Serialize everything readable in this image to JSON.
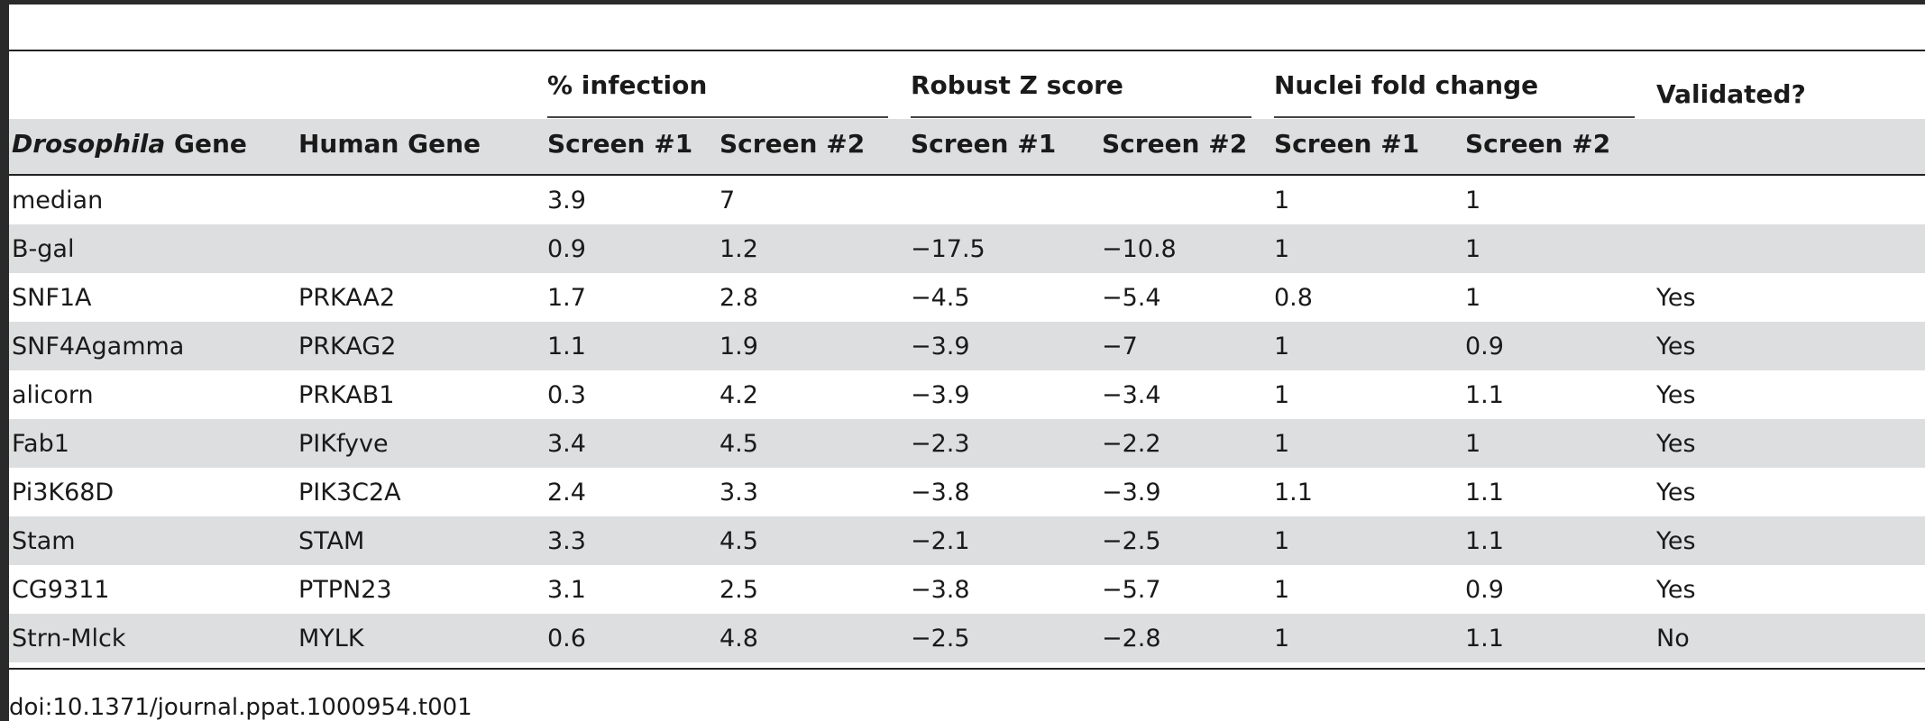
{
  "table": {
    "group_headers": {
      "infection": "% infection",
      "robust_z": "Robust Z score",
      "nuclei": "Nuclei fold change",
      "validated": "Validated?"
    },
    "col_headers": {
      "drosophila_italic": "Drosophila",
      "drosophila_rest": " Gene",
      "human": "Human Gene",
      "inf_s1": "Screen #1",
      "inf_s2": "Screen #2",
      "z_s1": "Screen #1",
      "z_s2": "Screen #2",
      "n_s1": "Screen #1",
      "n_s2": "Screen #2"
    },
    "rows": [
      [
        "median",
        "",
        "3.9",
        "7",
        "",
        "",
        "1",
        "1",
        ""
      ],
      [
        "B-gal",
        "",
        "0.9",
        "1.2",
        "−17.5",
        "−10.8",
        "1",
        "1",
        ""
      ],
      [
        "SNF1A",
        "PRKAA2",
        "1.7",
        "2.8",
        "−4.5",
        "−5.4",
        "0.8",
        "1",
        "Yes"
      ],
      [
        "SNF4Agamma",
        "PRKAG2",
        "1.1",
        "1.9",
        "−3.9",
        "−7",
        "1",
        "0.9",
        "Yes"
      ],
      [
        "alicorn",
        "PRKAB1",
        "0.3",
        "4.2",
        "−3.9",
        "−3.4",
        "1",
        "1.1",
        "Yes"
      ],
      [
        "Fab1",
        "PIKfyve",
        "3.4",
        "4.5",
        "−2.3",
        "−2.2",
        "1",
        "1",
        "Yes"
      ],
      [
        "Pi3K68D",
        "PIK3C2A",
        "2.4",
        "3.3",
        "−3.8",
        "−3.9",
        "1.1",
        "1.1",
        "Yes"
      ],
      [
        "Stam",
        "STAM",
        "3.3",
        "4.5",
        "−2.1",
        "−2.5",
        "1",
        "1.1",
        "Yes"
      ],
      [
        "CG9311",
        "PTPN23",
        "3.1",
        "2.5",
        "−3.8",
        "−5.7",
        "1",
        "0.9",
        "Yes"
      ],
      [
        "Strn-Mlck",
        "MYLK",
        "0.6",
        "4.8",
        "−2.5",
        "−2.8",
        "1",
        "1.1",
        "No"
      ]
    ]
  },
  "doi": "doi:10.1371/journal.ppat.1000954.t001"
}
